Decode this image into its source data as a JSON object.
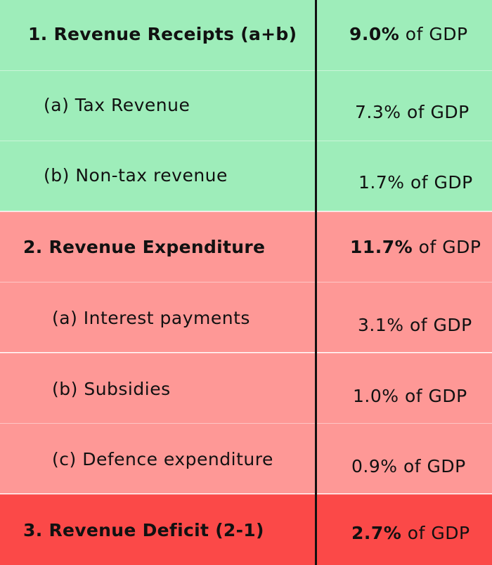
{
  "colors": {
    "revenue_receipts": "#9eedba",
    "revenue_expenditure": "#fe9896",
    "revenue_deficit": "#fb4948",
    "divider": "#111111"
  },
  "rows": [
    {
      "label": "1. Revenue Receipts (a+b)",
      "value_bold": "9.0%",
      "value_rest": " of GDP"
    },
    {
      "label": "(a) Tax Revenue",
      "value_bold": "",
      "value_rest": "7.3% of GDP"
    },
    {
      "label": "(b) Non-tax revenue",
      "value_bold": "",
      "value_rest": "1.7% of GDP"
    },
    {
      "label": "2. Revenue Expenditure",
      "value_bold": "11.7%",
      "value_rest": " of GDP"
    },
    {
      "label": "(a) Interest payments",
      "value_bold": "",
      "value_rest": "3.1% of GDP"
    },
    {
      "label": "(b) Subsidies",
      "value_bold": "",
      "value_rest": "1.0% of GDP"
    },
    {
      "label": "(c) Defence expenditure",
      "value_bold": "",
      "value_rest": "0.9% of GDP"
    },
    {
      "label": "3. Revenue Deficit (2-1)",
      "value_bold": "2.7%",
      "value_rest": " of GDP"
    }
  ]
}
